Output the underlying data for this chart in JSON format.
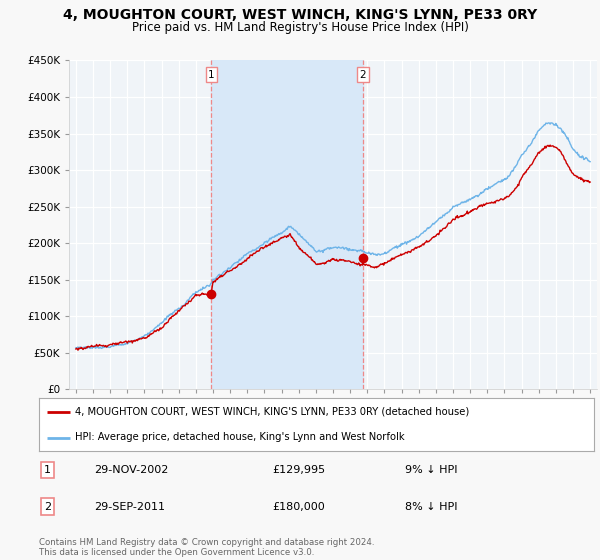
{
  "title": "4, MOUGHTON COURT, WEST WINCH, KING'S LYNN, PE33 0RY",
  "subtitle": "Price paid vs. HM Land Registry's House Price Index (HPI)",
  "legend_line1": "4, MOUGHTON COURT, WEST WINCH, KING'S LYNN, PE33 0RY (detached house)",
  "legend_line2": "HPI: Average price, detached house, King's Lynn and West Norfolk",
  "footnote": "Contains HM Land Registry data © Crown copyright and database right 2024.\nThis data is licensed under the Open Government Licence v3.0.",
  "transaction1_date": "29-NOV-2002",
  "transaction1_price": "£129,995",
  "transaction1_hpi": "9% ↓ HPI",
  "transaction2_date": "29-SEP-2011",
  "transaction2_price": "£180,000",
  "transaction2_hpi": "8% ↓ HPI",
  "hpi_color": "#6EB4E8",
  "price_color": "#CC0000",
  "vline_color": "#EE8888",
  "shade_color": "#D8E8F8",
  "background_color": "#F8F8F8",
  "plot_bg_color": "#F0F4F8",
  "ylim": [
    0,
    450000
  ],
  "yticks": [
    0,
    50000,
    100000,
    150000,
    200000,
    250000,
    300000,
    350000,
    400000,
    450000
  ],
  "x_start_year": 1995,
  "x_end_year": 2025,
  "transaction1_x": 2002.91,
  "transaction2_x": 2011.74
}
